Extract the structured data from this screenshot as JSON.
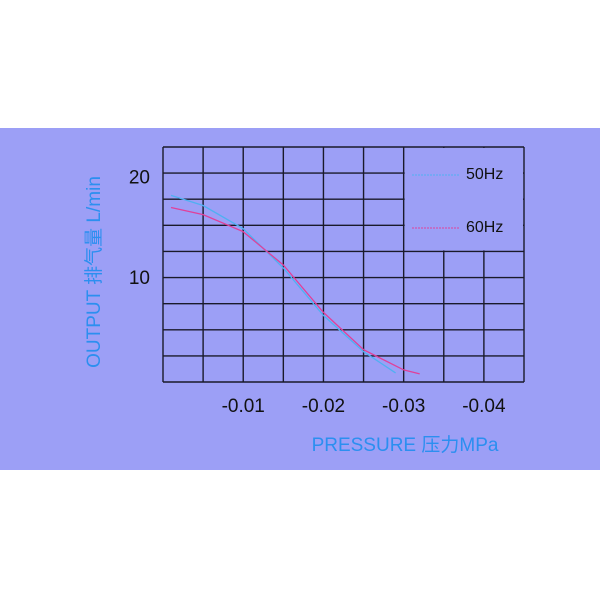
{
  "chart_data": {
    "type": "line",
    "xlabel": "PRESSURE 压力MPa",
    "ylabel": "OUTPUT 排气量 L/min",
    "xlim": [
      0,
      -0.045
    ],
    "ylim": [
      -0.2,
      23.1
    ],
    "xticks": [
      -0.01,
      -0.02,
      -0.03,
      -0.04
    ],
    "yticks": [
      10,
      20
    ],
    "series": [
      {
        "name": "50Hz",
        "color": "#4fb0f2",
        "x": [
          -0.001,
          -0.005,
          -0.01,
          -0.015,
          -0.02,
          -0.025,
          -0.029
        ],
        "values": [
          18.3,
          17.3,
          15.0,
          11.1,
          6.4,
          2.8,
          0.7
        ]
      },
      {
        "name": "60Hz",
        "color": "#e0409a",
        "x": [
          -0.001,
          -0.005,
          -0.01,
          -0.015,
          -0.02,
          -0.025,
          -0.03,
          -0.032
        ],
        "values": [
          17.1,
          16.4,
          14.7,
          11.4,
          6.7,
          3.0,
          1.0,
          0.6
        ]
      }
    ]
  }
}
